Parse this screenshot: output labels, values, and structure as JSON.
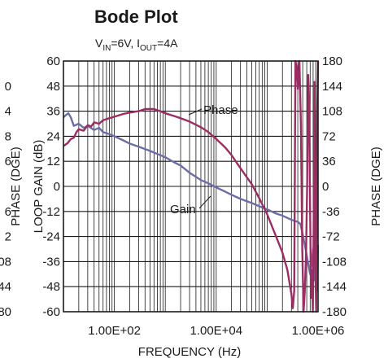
{
  "chart_data": {
    "type": "line",
    "title": "Bode Plot",
    "subtitle": {
      "v_main": "V",
      "v_sub": "IN",
      "v_rest": "=6V, I",
      "i_sub": "OUT",
      "i_rest": "=4A"
    },
    "xlabel": "FREQUENCY (Hz)",
    "ylabel_left": "LOOP GAIN (dB)",
    "ylabel_left_ghost": "PHASE (DGE)",
    "ylabel_right": "PHASE (DGE)",
    "x_scale": "log",
    "xlim": [
      10,
      1000000
    ],
    "ylim_left": [
      -60,
      60
    ],
    "ylim_right": [
      -180,
      180
    ],
    "x_ticks": [
      {
        "value": 100,
        "label": "1.00E+02"
      },
      {
        "value": 10000,
        "label": "1.00E+04"
      },
      {
        "value": 1000000,
        "label": "1.00E+06"
      }
    ],
    "y_left_ticks": [
      {
        "value": 60,
        "label": "60"
      },
      {
        "value": 48,
        "label": "48"
      },
      {
        "value": 36,
        "label": "36"
      },
      {
        "value": 24,
        "label": "24"
      },
      {
        "value": 12,
        "label": "12"
      },
      {
        "value": 0,
        "label": "0"
      },
      {
        "value": -12,
        "label": "-12"
      },
      {
        "value": -24,
        "label": "-24"
      },
      {
        "value": -36,
        "label": "-36"
      },
      {
        "value": -48,
        "label": "-48"
      },
      {
        "value": -60,
        "label": "-60"
      }
    ],
    "y_right_ticks": [
      {
        "value": 180,
        "label": "180"
      },
      {
        "value": 144,
        "label": "144"
      },
      {
        "value": 108,
        "label": "108"
      },
      {
        "value": 72,
        "label": "72"
      },
      {
        "value": 36,
        "label": "36"
      },
      {
        "value": 0,
        "label": "0"
      },
      {
        "value": -36,
        "label": "-36"
      },
      {
        "value": -72,
        "label": "-72"
      },
      {
        "value": -108,
        "label": "-108"
      },
      {
        "value": -144,
        "label": "-144"
      },
      {
        "value": -180,
        "label": "-180"
      }
    ],
    "ghost_left_ticks": [
      {
        "value": 48,
        "label": "0"
      },
      {
        "value": 36,
        "label": "4"
      },
      {
        "value": 24,
        "label": "8"
      },
      {
        "value": 12,
        "label": "6"
      },
      {
        "value": -12,
        "label": "6"
      },
      {
        "value": -24,
        "label": "2"
      },
      {
        "value": -36,
        "label": "08"
      },
      {
        "value": -48,
        "label": "44"
      },
      {
        "value": -60,
        "label": "80"
      }
    ],
    "grid": true,
    "series": [
      {
        "name": "Gain",
        "color": "#6b6ea6",
        "axis": "left",
        "points": [
          [
            10,
            33
          ],
          [
            11,
            34
          ],
          [
            12.5,
            35
          ],
          [
            14,
            33
          ],
          [
            16,
            29
          ],
          [
            20,
            30
          ],
          [
            25,
            28
          ],
          [
            30,
            29
          ],
          [
            40,
            27
          ],
          [
            50,
            28
          ],
          [
            60,
            26
          ],
          [
            80,
            25
          ],
          [
            100,
            24
          ],
          [
            150,
            22
          ],
          [
            200,
            20.5
          ],
          [
            300,
            19
          ],
          [
            500,
            17
          ],
          [
            700,
            15.5
          ],
          [
            1000,
            14
          ],
          [
            1500,
            11.5
          ],
          [
            2000,
            10
          ],
          [
            3000,
            6.5
          ],
          [
            5000,
            3
          ],
          [
            7000,
            1.5
          ],
          [
            10000,
            -0.5
          ],
          [
            15000,
            -2.5
          ],
          [
            20000,
            -4
          ],
          [
            30000,
            -6
          ],
          [
            50000,
            -8
          ],
          [
            70000,
            -9.5
          ],
          [
            100000,
            -11
          ],
          [
            150000,
            -13
          ],
          [
            200000,
            -14
          ],
          [
            300000,
            -16
          ],
          [
            400000,
            -17
          ],
          [
            450000,
            -18
          ],
          [
            500000,
            -23
          ],
          [
            550000,
            -28
          ],
          [
            600000,
            -33
          ],
          [
            650000,
            -38
          ],
          [
            700000,
            -42
          ],
          [
            750000,
            -37
          ],
          [
            800000,
            -30
          ],
          [
            830000,
            -45
          ],
          [
            880000,
            -25
          ],
          [
            920000,
            -40
          ],
          [
            960000,
            -50
          ],
          [
            1000000,
            -28
          ]
        ]
      },
      {
        "name": "Phase",
        "color": "#9b2d63",
        "axis": "right",
        "points": [
          [
            10,
            58
          ],
          [
            12,
            62
          ],
          [
            14,
            68
          ],
          [
            16,
            70
          ],
          [
            18,
            78
          ],
          [
            20,
            82
          ],
          [
            25,
            80
          ],
          [
            30,
            88
          ],
          [
            35,
            86
          ],
          [
            40,
            92
          ],
          [
            50,
            90
          ],
          [
            60,
            95
          ],
          [
            80,
            98
          ],
          [
            100,
            100
          ],
          [
            150,
            104
          ],
          [
            200,
            106
          ],
          [
            300,
            108
          ],
          [
            400,
            111
          ],
          [
            600,
            111
          ],
          [
            800,
            108
          ],
          [
            1000,
            105
          ],
          [
            1500,
            101
          ],
          [
            2000,
            98
          ],
          [
            3000,
            93
          ],
          [
            5000,
            85
          ],
          [
            7000,
            78
          ],
          [
            10000,
            68
          ],
          [
            15000,
            56
          ],
          [
            20000,
            45
          ],
          [
            30000,
            26
          ],
          [
            50000,
            3
          ],
          [
            70000,
            -17
          ],
          [
            100000,
            -40
          ],
          [
            150000,
            -72
          ],
          [
            200000,
            -95
          ],
          [
            250000,
            -120
          ],
          [
            300000,
            -155
          ],
          [
            320000,
            -175
          ],
          [
            340000,
            -150
          ],
          [
            360000,
            180
          ],
          [
            380000,
            170
          ],
          [
            400000,
            140
          ],
          [
            430000,
            180
          ],
          [
            460000,
            90
          ],
          [
            490000,
            -90
          ],
          [
            520000,
            -180
          ],
          [
            550000,
            -150
          ],
          [
            580000,
            -100
          ],
          [
            610000,
            0
          ],
          [
            640000,
            160
          ],
          [
            670000,
            120
          ],
          [
            700000,
            -40
          ],
          [
            730000,
            -160
          ],
          [
            760000,
            -120
          ],
          [
            790000,
            -180
          ],
          [
            820000,
            -60
          ],
          [
            850000,
            150
          ],
          [
            880000,
            -100
          ],
          [
            920000,
            -180
          ],
          [
            960000,
            100
          ],
          [
            1000000,
            180
          ]
        ]
      }
    ],
    "annotations": [
      {
        "text": "Phase",
        "series": "Phase"
      },
      {
        "text": "Gain",
        "series": "Gain"
      }
    ]
  }
}
